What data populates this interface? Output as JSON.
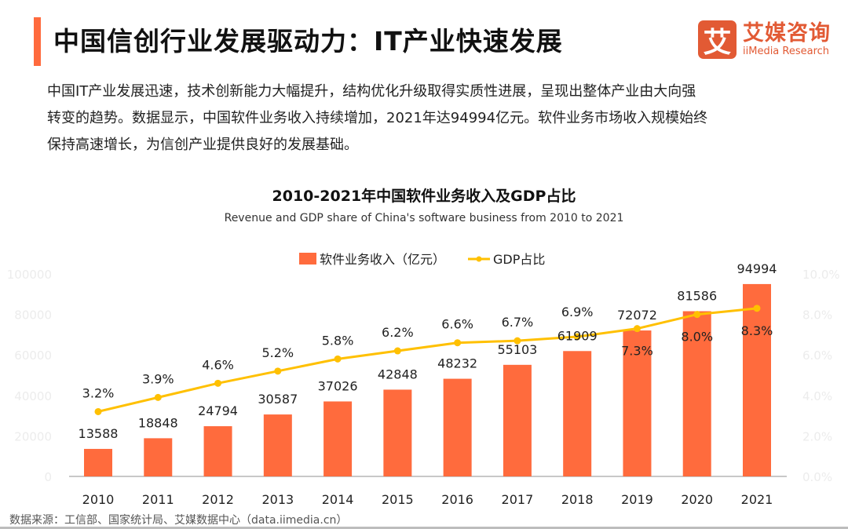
{
  "header": {
    "title": "中国信创行业发展驱动力：IT产业快速发展",
    "logo_mark": "艾",
    "logo_cn": "艾媒咨询",
    "logo_en": "iiMedia Research"
  },
  "intro": {
    "lines": [
      "中国IT产业发展迅速，技术创新能力大幅提升，结构优化升级取得实质性进展，呈现出整体产业由大向强",
      "转变的趋势。数据显示，中国软件业务收入持续增加，2021年达94994亿元。软件业务市场收入规模始终",
      "保持高速增长，为信创产业提供良好的发展基础。"
    ]
  },
  "colors": {
    "accent": "#ff6a3d",
    "bar": "#ff6b3d",
    "line": "#ffc000",
    "logo": "#e25a34"
  },
  "chart_data": {
    "type": "bar",
    "title": "2010-2021年中国软件业务收入及GDP占比",
    "subtitle": "Revenue and GDP share of China's software business from 2010 to 2021",
    "categories": [
      "2010",
      "2011",
      "2012",
      "2013",
      "2014",
      "2015",
      "2016",
      "2017",
      "2018",
      "2019",
      "2020",
      "2021"
    ],
    "series": [
      {
        "name": "软件业务收入（亿元）",
        "type": "bar",
        "axis": "left",
        "values": [
          13588,
          18848,
          24794,
          30587,
          37026,
          42848,
          48232,
          55103,
          61909,
          72072,
          81586,
          94994
        ],
        "labels": [
          "13588",
          "18848",
          "24794",
          "30587",
          "37026",
          "42848",
          "48232",
          "55103",
          "61909",
          "72072",
          "81586",
          "94994"
        ]
      },
      {
        "name": "GDP占比",
        "type": "line",
        "axis": "right",
        "values": [
          3.2,
          3.9,
          4.6,
          5.2,
          5.8,
          6.2,
          6.6,
          6.7,
          6.9,
          7.3,
          8.0,
          8.3
        ],
        "labels": [
          "3.2%",
          "3.9%",
          "4.6%",
          "5.2%",
          "5.8%",
          "6.2%",
          "6.6%",
          "6.7%",
          "6.9%",
          "7.3%",
          "8.0%",
          "8.3%"
        ]
      }
    ],
    "y_left": {
      "min": 0,
      "max": 100000,
      "ticks": [
        "0",
        "20000",
        "40000",
        "60000",
        "80000",
        "100000"
      ]
    },
    "y_right": {
      "min": 0,
      "max": 10,
      "ticks": [
        "0.0%",
        "2.0%",
        "4.0%",
        "6.0%",
        "8.0%",
        "10.0%"
      ]
    },
    "grid": false,
    "legend": "top-center"
  },
  "footer": {
    "source": "数据来源：工信部、国家统计局、艾媒数据中心（data.iimedia.cn）"
  }
}
